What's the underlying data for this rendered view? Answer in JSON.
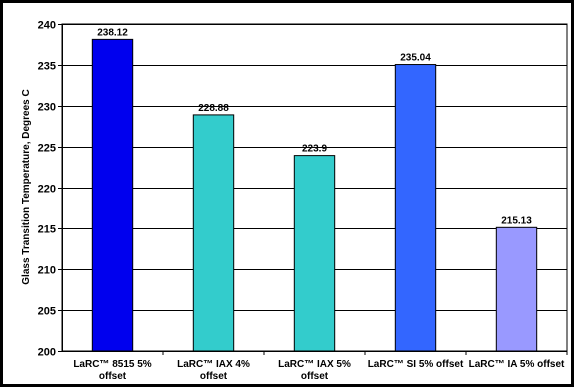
{
  "chart_data": {
    "type": "bar",
    "title": "",
    "xlabel": "",
    "ylabel": "Glass Transition Temperature, Degrees C",
    "ylim": [
      200,
      240
    ],
    "yticks": [
      200,
      205,
      210,
      215,
      220,
      225,
      230,
      235,
      240
    ],
    "grid": true,
    "legend": "none",
    "categories": [
      [
        "LaRC™ 8515 5%",
        "offset"
      ],
      [
        "LaRC™ IAX 4%",
        "offset"
      ],
      [
        "LaRC™ IAX 5%",
        "offset"
      ],
      [
        "LaRC™ SI 5% offset"
      ],
      [
        "LaRC™ IA 5% offset"
      ]
    ],
    "values": [
      238.12,
      228.88,
      223.9,
      235.04,
      215.13
    ],
    "value_labels": [
      "238.12",
      "228.88",
      "223.9",
      "235.04",
      "215.13"
    ],
    "bar_colors": [
      "#0000ee",
      "#33cccc",
      "#33cccc",
      "#3366ff",
      "#9999ff"
    ],
    "colors": {
      "frame_background": "#000000",
      "plot_background": "#ffffff",
      "gridline": "#000000"
    }
  }
}
